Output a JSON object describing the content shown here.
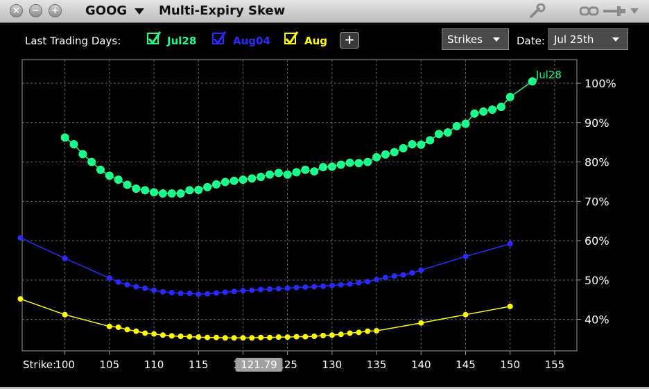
{
  "window": {
    "symbol": "GOOG",
    "title": "Multi-Expiry Skew",
    "controls": [
      "close-icon",
      "minimize-icon",
      "zoom-icon"
    ],
    "tool_icons": [
      "wrench-icon",
      "link-icon",
      "pin-icon",
      "chevron-down-icon"
    ]
  },
  "toolbar": {
    "last_trading_days_label": "Last Trading Days:",
    "expiries": [
      {
        "label": "Jul28",
        "color": "#1aff8c",
        "checked": true
      },
      {
        "label": "Aug04",
        "color": "#2a2aff",
        "checked": true
      },
      {
        "label": "Aug",
        "color": "#ffff00",
        "checked": true
      }
    ],
    "add_label": "+",
    "axis_mode": "Strikes",
    "date_label": "Date:",
    "date_value": "Jul 25th"
  },
  "chart_data": {
    "type": "line",
    "x_title": "Strike:",
    "xlim": [
      95.2,
      157.5
    ],
    "ylim": [
      32,
      106
    ],
    "x_ticks": [
      100,
      105,
      110,
      115,
      120,
      125,
      130,
      135,
      140,
      145,
      150,
      155
    ],
    "y_ticks": [
      40,
      50,
      60,
      70,
      80,
      90,
      100
    ],
    "y_tick_labels": [
      "40%",
      "50%",
      "60%",
      "70%",
      "80%",
      "90%",
      "100%"
    ],
    "grid": true,
    "crosshair": {
      "x": 121.79,
      "label": "121.79"
    },
    "series": [
      {
        "name": "Jul28",
        "color": "#1aff8c",
        "end_label": "Jul28",
        "points": [
          [
            100,
            86.2
          ],
          [
            101,
            84.5
          ],
          [
            102,
            82.0
          ],
          [
            103,
            80.0
          ],
          [
            104,
            78.0
          ],
          [
            105,
            76.5
          ],
          [
            106,
            75.5
          ],
          [
            107,
            74.2
          ],
          [
            108,
            73.2
          ],
          [
            109,
            72.8
          ],
          [
            110,
            72.3
          ],
          [
            111,
            72.0
          ],
          [
            112,
            72.0
          ],
          [
            113,
            72.0
          ],
          [
            114,
            72.8
          ],
          [
            115,
            72.9
          ],
          [
            116,
            73.6
          ],
          [
            117,
            74.3
          ],
          [
            118,
            74.9
          ],
          [
            119,
            75.2
          ],
          [
            120,
            75.5
          ],
          [
            121,
            75.8
          ],
          [
            122,
            76.2
          ],
          [
            123,
            76.8
          ],
          [
            124,
            77.2
          ],
          [
            125,
            76.8
          ],
          [
            126,
            77.4
          ],
          [
            127,
            78.0
          ],
          [
            128,
            77.6
          ],
          [
            129,
            78.7
          ],
          [
            130,
            78.8
          ],
          [
            131,
            79.3
          ],
          [
            132,
            79.8
          ],
          [
            133,
            79.7
          ],
          [
            134,
            80.0
          ],
          [
            135,
            81.2
          ],
          [
            136,
            81.9
          ],
          [
            137,
            82.5
          ],
          [
            138,
            83.5
          ],
          [
            139,
            84.5
          ],
          [
            140,
            84.4
          ],
          [
            141,
            85.5
          ],
          [
            142,
            87.1
          ],
          [
            143,
            87.5
          ],
          [
            144,
            89.1
          ],
          [
            145,
            89.7
          ],
          [
            146,
            92.3
          ],
          [
            147,
            92.8
          ],
          [
            148,
            93.3
          ],
          [
            149,
            94.0
          ],
          [
            150,
            96.5
          ],
          [
            152.5,
            100.5
          ]
        ]
      },
      {
        "name": "Aug04",
        "color": "#2a2aff",
        "points": [
          [
            95,
            60.7
          ],
          [
            100,
            55.5
          ],
          [
            105,
            50.5
          ],
          [
            106,
            49.5
          ],
          [
            107,
            48.8
          ],
          [
            108,
            48.3
          ],
          [
            109,
            47.9
          ],
          [
            110,
            47.4
          ],
          [
            111,
            47.0
          ],
          [
            112,
            46.8
          ],
          [
            113,
            46.6
          ],
          [
            114,
            46.6
          ],
          [
            115,
            46.4
          ],
          [
            116,
            46.5
          ],
          [
            117,
            46.7
          ],
          [
            118,
            46.9
          ],
          [
            119,
            47.1
          ],
          [
            120,
            47.3
          ],
          [
            121,
            47.4
          ],
          [
            122,
            47.6
          ],
          [
            123,
            47.7
          ],
          [
            124,
            47.8
          ],
          [
            125,
            47.9
          ],
          [
            126,
            48.1
          ],
          [
            127,
            48.2
          ],
          [
            128,
            48.3
          ],
          [
            129,
            48.4
          ],
          [
            130,
            48.6
          ],
          [
            131,
            48.8
          ],
          [
            132,
            49.0
          ],
          [
            133,
            49.3
          ],
          [
            134,
            49.6
          ],
          [
            135,
            50.1
          ],
          [
            136,
            50.6
          ],
          [
            137,
            51.0
          ],
          [
            138,
            51.3
          ],
          [
            139,
            51.8
          ],
          [
            140,
            52.5
          ],
          [
            145,
            56.0
          ],
          [
            150,
            59.2
          ]
        ]
      },
      {
        "name": "Aug",
        "color": "#ffff00",
        "points": [
          [
            95,
            45.2
          ],
          [
            100,
            41.2
          ],
          [
            105,
            38.2
          ],
          [
            106,
            38.0
          ],
          [
            107,
            37.4
          ],
          [
            108,
            37.0
          ],
          [
            109,
            36.5
          ],
          [
            110,
            36.3
          ],
          [
            111,
            36.0
          ],
          [
            112,
            35.8
          ],
          [
            113,
            35.7
          ],
          [
            114,
            35.6
          ],
          [
            115,
            35.5
          ],
          [
            116,
            35.4
          ],
          [
            117,
            35.4
          ],
          [
            118,
            35.3
          ],
          [
            119,
            35.3
          ],
          [
            120,
            35.3
          ],
          [
            121,
            35.3
          ],
          [
            122,
            35.4
          ],
          [
            123,
            35.4
          ],
          [
            124,
            35.5
          ],
          [
            125,
            35.5
          ],
          [
            126,
            35.6
          ],
          [
            127,
            35.6
          ],
          [
            128,
            35.7
          ],
          [
            129,
            35.9
          ],
          [
            130,
            36.0
          ],
          [
            131,
            36.2
          ],
          [
            132,
            36.5
          ],
          [
            133,
            36.7
          ],
          [
            134,
            37.0
          ],
          [
            135,
            37.1
          ],
          [
            140,
            39.1
          ],
          [
            145,
            41.2
          ],
          [
            150,
            43.3
          ]
        ]
      }
    ]
  }
}
